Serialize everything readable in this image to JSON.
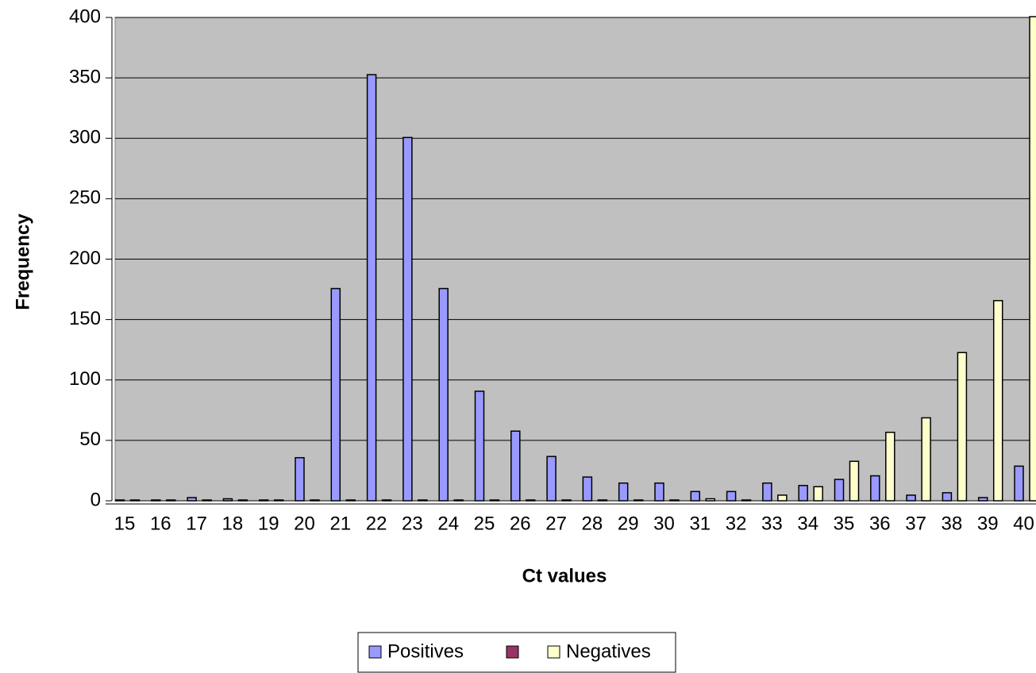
{
  "chart_data": {
    "type": "bar",
    "x_label": "Ct values",
    "y_label": "Frequency",
    "categories": [
      "15",
      "16",
      "17",
      "18",
      "19",
      "20",
      "21",
      "22",
      "23",
      "24",
      "25",
      "26",
      "27",
      "28",
      "29",
      "30",
      "31",
      "32",
      "33",
      "34",
      "35",
      "36",
      "37",
      "38",
      "39",
      "40"
    ],
    "series": [
      {
        "name": "Positives",
        "color": "#9999ff",
        "values": [
          0,
          0,
          2,
          1,
          0,
          35,
          175,
          352,
          300,
          175,
          90,
          57,
          36,
          19,
          14,
          14,
          7,
          7,
          14,
          12,
          17,
          20,
          4,
          6,
          2,
          28
        ]
      },
      {
        "name": null,
        "color": "#993366",
        "values": [
          null,
          null,
          null,
          null,
          null,
          null,
          null,
          null,
          null,
          null,
          null,
          null,
          null,
          null,
          null,
          null,
          null,
          null,
          null,
          null,
          null,
          null,
          null,
          null,
          null,
          null
        ]
      },
      {
        "name": "Negatives",
        "color": "#ffffcc",
        "values": [
          0,
          0,
          0,
          0,
          0,
          0,
          0,
          0,
          0,
          0,
          0,
          0,
          0,
          0,
          0,
          0,
          1,
          0,
          4,
          11,
          32,
          56,
          68,
          122,
          165,
          400
        ]
      }
    ],
    "ylim": [
      0,
      400
    ],
    "yticks": [
      0,
      50,
      100,
      150,
      200,
      250,
      300,
      350,
      400
    ],
    "grid": true,
    "legend": "bottom",
    "plot_background": "#c0c0c0"
  }
}
